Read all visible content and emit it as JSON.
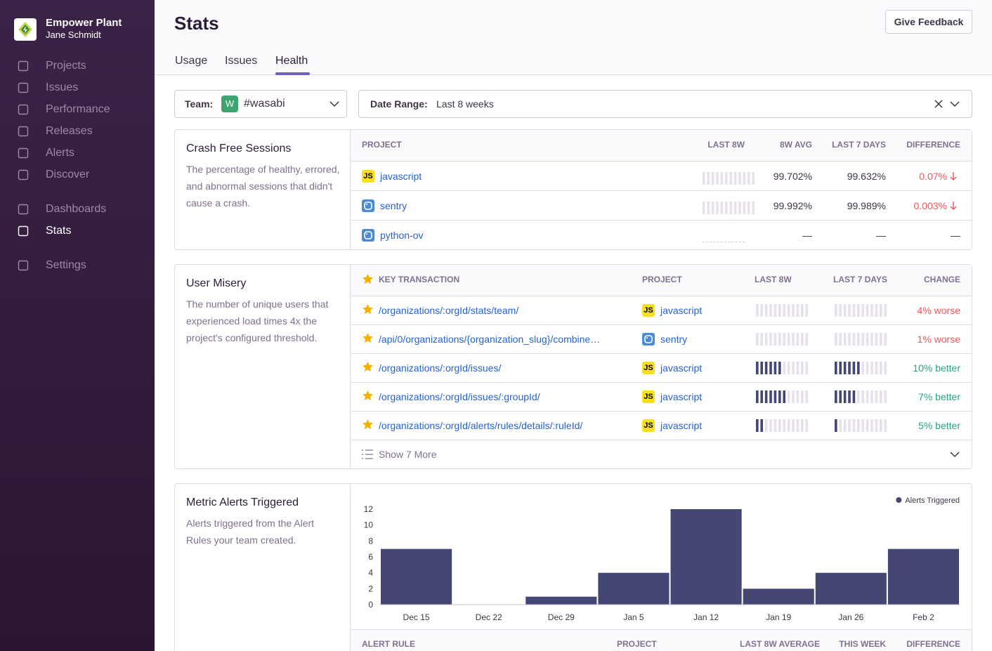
{
  "sidebar": {
    "org": "Empower Plant",
    "user": "Jane Schmidt",
    "nav": [
      "Projects",
      "Issues",
      "Performance",
      "Releases",
      "Alerts",
      "Discover",
      "Dashboards",
      "Stats",
      "Settings"
    ],
    "active": "Stats"
  },
  "header": {
    "title": "Stats",
    "feedback": "Give Feedback",
    "tabs": [
      "Usage",
      "Issues",
      "Health"
    ],
    "active_tab": "Health"
  },
  "filters": {
    "team_label": "Team:",
    "team_badge": "W",
    "team": "#wasabi",
    "date_label": "Date Range:",
    "date": "Last 8 weeks"
  },
  "crash_free": {
    "title": "Crash Free Sessions",
    "description": "The percentage of healthy, errored, and abnormal sessions that didn't cause a crash.",
    "columns": [
      "PROJECT",
      "LAST 8W",
      "8W AVG",
      "LAST 7 DAYS",
      "DIFFERENCE"
    ],
    "rows": [
      {
        "badge": "JS",
        "project": "javascript",
        "avg": "99.702%",
        "last7": "99.632%",
        "difference": "0.07%",
        "color": "#f55459",
        "arrow": "down"
      },
      {
        "project": "sentry",
        "avg": "99.992%",
        "last7": "99.989%",
        "difference": "0.003%",
        "color": "#f55459",
        "arrow": "down"
      },
      {
        "project": "python-ov",
        "avg": "—",
        "last7": "—",
        "difference": "—",
        "color": "#3e3446"
      }
    ]
  },
  "user_misery": {
    "title": "User Misery",
    "description": "The number of unique users that experienced load times 4x the project's configured threshold.",
    "columns": [
      "KEY TRANSACTION",
      "PROJECT",
      "LAST 8W",
      "LAST 7 DAYS",
      "CHANGE"
    ],
    "rows": [
      {
        "transaction": "/organizations/:orgId/stats/team/",
        "badge": "JS",
        "project": "javascript",
        "last8w_bars": 0,
        "last7_bars": 0,
        "change": "4% worse",
        "color": "#f55459"
      },
      {
        "transaction": "/api/0/organizations/{organization_slug}/combine…",
        "project": "sentry",
        "last8w_bars": 0,
        "last7_bars": 0,
        "change": "1% worse",
        "color": "#f55459"
      },
      {
        "transaction": "/organizations/:orgId/issues/",
        "badge": "JS",
        "project": "javascript",
        "last8w_bars": 6,
        "last7_bars": 6,
        "change": "10% better",
        "color": "#2ba185"
      },
      {
        "transaction": "/organizations/:orgId/issues/:groupId/",
        "badge": "JS",
        "project": "javascript",
        "last8w_bars": 7,
        "last7_bars": 5,
        "change": "7% better",
        "color": "#2ba185"
      },
      {
        "transaction": "/organizations/:orgId/alerts/rules/details/:ruleId/",
        "badge": "JS",
        "project": "javascript",
        "last8w_bars": 2,
        "last7_bars": 1,
        "change": "5% better",
        "color": "#2ba185"
      }
    ],
    "show_more": "Show 7 More"
  },
  "metric_alerts": {
    "title": "Metric Alerts Triggered",
    "description": "Alerts triggered from the Alert Rules your team created.",
    "columns": [
      "ALERT RULE",
      "PROJECT",
      "LAST 8W AVERAGE",
      "THIS WEEK",
      "DIFFERENCE"
    ]
  },
  "chart_data": {
    "type": "bar",
    "categories": [
      "Dec 15",
      "Dec 22",
      "Dec 29",
      "Jan 5",
      "Jan 12",
      "Jan 19",
      "Jan 26",
      "Feb 2"
    ],
    "series": [
      {
        "name": "Alerts Triggered",
        "color": "#444674",
        "values": [
          7,
          0,
          1,
          4,
          12,
          2,
          4,
          7
        ]
      }
    ],
    "ylim": [
      0,
      12
    ],
    "yticks": [
      0,
      2,
      4,
      6,
      8,
      10,
      12
    ],
    "grid": false,
    "legend": "top-right"
  }
}
